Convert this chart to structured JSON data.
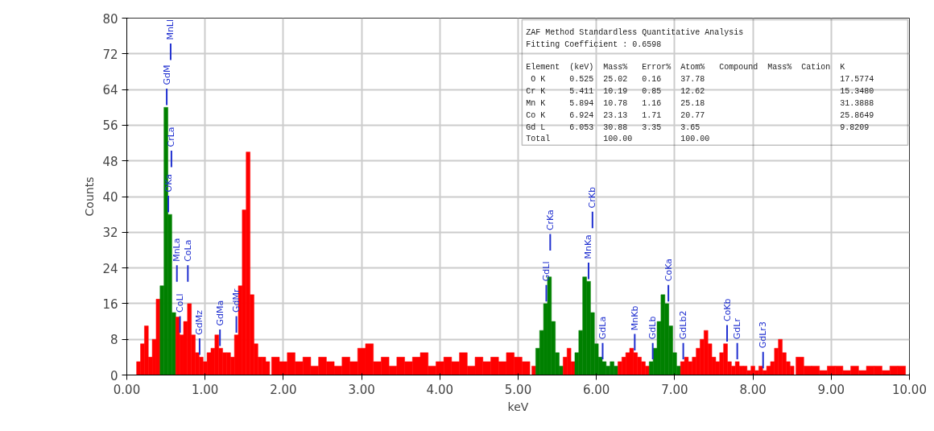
{
  "chart_data": {
    "type": "bar",
    "xlabel": "keV",
    "ylabel": "Counts",
    "xlim": [
      0,
      10
    ],
    "ylim": [
      0,
      80
    ],
    "xticks": [
      {
        "value": 0,
        "label": "0.00"
      },
      {
        "value": 1,
        "label": "1.00"
      },
      {
        "value": 2,
        "label": "2.00"
      },
      {
        "value": 3,
        "label": "3.00"
      },
      {
        "value": 4,
        "label": "4.00"
      },
      {
        "value": 5,
        "label": "5.00"
      },
      {
        "value": 6,
        "label": "6.00"
      },
      {
        "value": 7,
        "label": "7.00"
      },
      {
        "value": 8,
        "label": "8.00"
      },
      {
        "value": 9,
        "label": "9.00"
      },
      {
        "value": 10,
        "label": "10.00"
      }
    ],
    "yticks": [
      0,
      8,
      16,
      24,
      32,
      40,
      48,
      56,
      64,
      72,
      80
    ],
    "grid": true,
    "x": [
      0.15,
      0.2,
      0.25,
      0.3,
      0.35,
      0.4,
      0.45,
      0.5,
      0.55,
      0.6,
      0.65,
      0.7,
      0.75,
      0.8,
      0.85,
      0.9,
      0.95,
      1.0,
      1.05,
      1.1,
      1.15,
      1.2,
      1.25,
      1.3,
      1.35,
      1.4,
      1.45,
      1.5,
      1.55,
      1.6,
      1.65,
      1.7,
      1.75,
      1.8,
      1.9,
      2.0,
      2.1,
      2.2,
      2.3,
      2.4,
      2.5,
      2.6,
      2.7,
      2.8,
      2.9,
      3.0,
      3.1,
      3.2,
      3.3,
      3.4,
      3.5,
      3.6,
      3.7,
      3.8,
      3.9,
      4.0,
      4.1,
      4.2,
      4.3,
      4.4,
      4.5,
      4.6,
      4.7,
      4.8,
      4.9,
      5.0,
      5.1,
      5.2,
      5.25,
      5.3,
      5.35,
      5.4,
      5.45,
      5.5,
      5.55,
      5.6,
      5.65,
      5.7,
      5.75,
      5.8,
      5.85,
      5.9,
      5.95,
      6.0,
      6.05,
      6.1,
      6.15,
      6.2,
      6.25,
      6.3,
      6.35,
      6.4,
      6.45,
      6.5,
      6.55,
      6.6,
      6.65,
      6.7,
      6.75,
      6.8,
      6.85,
      6.9,
      6.95,
      7.0,
      7.05,
      7.1,
      7.15,
      7.2,
      7.25,
      7.3,
      7.35,
      7.4,
      7.45,
      7.5,
      7.55,
      7.6,
      7.65,
      7.7,
      7.75,
      7.8,
      7.85,
      7.9,
      7.95,
      8.0,
      8.05,
      8.1,
      8.15,
      8.2,
      8.25,
      8.3,
      8.35,
      8.4,
      8.45,
      8.5,
      8.6,
      8.7,
      8.8,
      8.9,
      9.0,
      9.1,
      9.2,
      9.3,
      9.4,
      9.5,
      9.6,
      9.7,
      9.8,
      9.9
    ],
    "values": [
      3,
      7,
      11,
      4,
      8,
      17,
      20,
      60,
      36,
      14,
      13,
      9,
      12,
      16,
      9,
      5,
      4,
      3,
      5,
      6,
      9,
      6,
      5,
      5,
      4,
      9,
      20,
      37,
      50,
      18,
      7,
      4,
      4,
      3,
      4,
      3,
      5,
      3,
      4,
      2,
      4,
      3,
      2,
      4,
      3,
      6,
      7,
      3,
      4,
      2,
      4,
      3,
      4,
      5,
      2,
      3,
      4,
      3,
      5,
      2,
      4,
      3,
      4,
      3,
      5,
      4,
      3,
      2,
      6,
      10,
      16,
      22,
      12,
      5,
      2,
      4,
      6,
      3,
      5,
      10,
      22,
      21,
      14,
      7,
      4,
      3,
      2,
      3,
      2,
      3,
      4,
      5,
      6,
      5,
      4,
      3,
      2,
      3,
      6,
      12,
      18,
      16,
      11,
      5,
      2,
      3,
      4,
      3,
      4,
      6,
      8,
      10,
      7,
      4,
      3,
      5,
      7,
      3,
      2,
      3,
      2,
      2,
      1,
      2,
      1,
      2,
      1,
      2,
      3,
      6,
      8,
      5,
      3,
      2,
      4,
      2,
      2,
      1,
      2,
      2,
      1,
      2,
      1,
      2,
      2,
      1,
      2,
      2
    ],
    "colors": [
      "#ff0000",
      "#ff0000",
      "#ff0000",
      "#ff0000",
      "#ff0000",
      "#ff0000",
      "#008000",
      "#008000",
      "#008000",
      "#008000",
      "#ff0000",
      "#ff0000",
      "#ff0000",
      "#ff0000",
      "#ff0000",
      "#ff0000",
      "#ff0000",
      "#ff0000",
      "#ff0000",
      "#ff0000",
      "#ff0000",
      "#ff0000",
      "#ff0000",
      "#ff0000",
      "#ff0000",
      "#ff0000",
      "#ff0000",
      "#ff0000",
      "#ff0000",
      "#ff0000",
      "#ff0000",
      "#ff0000",
      "#ff0000",
      "#ff0000",
      "#ff0000",
      "#ff0000",
      "#ff0000",
      "#ff0000",
      "#ff0000",
      "#ff0000",
      "#ff0000",
      "#ff0000",
      "#ff0000",
      "#ff0000",
      "#ff0000",
      "#ff0000",
      "#ff0000",
      "#ff0000",
      "#ff0000",
      "#ff0000",
      "#ff0000",
      "#ff0000",
      "#ff0000",
      "#ff0000",
      "#ff0000",
      "#ff0000",
      "#ff0000",
      "#ff0000",
      "#ff0000",
      "#ff0000",
      "#ff0000",
      "#ff0000",
      "#ff0000",
      "#ff0000",
      "#ff0000",
      "#ff0000",
      "#ff0000",
      "#ff0000",
      "#008000",
      "#008000",
      "#008000",
      "#008000",
      "#008000",
      "#008000",
      "#008000",
      "#ff0000",
      "#ff0000",
      "#ff0000",
      "#008000",
      "#008000",
      "#008000",
      "#008000",
      "#008000",
      "#008000",
      "#008000",
      "#008000",
      "#008000",
      "#008000",
      "#008000",
      "#ff0000",
      "#ff0000",
      "#ff0000",
      "#ff0000",
      "#ff0000",
      "#ff0000",
      "#ff0000",
      "#ff0000",
      "#008000",
      "#008000",
      "#008000",
      "#008000",
      "#008000",
      "#008000",
      "#008000",
      "#008000",
      "#ff0000",
      "#ff0000",
      "#ff0000",
      "#ff0000",
      "#ff0000",
      "#ff0000",
      "#ff0000",
      "#ff0000",
      "#ff0000",
      "#ff0000",
      "#ff0000",
      "#ff0000",
      "#ff0000",
      "#ff0000",
      "#ff0000",
      "#ff0000",
      "#ff0000",
      "#ff0000",
      "#ff0000",
      "#ff0000",
      "#ff0000",
      "#ff0000",
      "#ff0000",
      "#ff0000",
      "#ff0000",
      "#ff0000",
      "#ff0000",
      "#ff0000",
      "#ff0000",
      "#ff0000",
      "#ff0000",
      "#ff0000",
      "#ff0000",
      "#ff0000",
      "#ff0000",
      "#ff0000",
      "#ff0000",
      "#ff0000",
      "#ff0000",
      "#ff0000",
      "#ff0000",
      "#ff0000",
      "#ff0000"
    ],
    "ref_lines": [
      {
        "axis": "x",
        "value": 0.51,
        "label": "GdM",
        "color": "#2030d0"
      },
      {
        "axis": "x",
        "value": 0.53,
        "label": "OKa",
        "color": "#2030d0"
      },
      {
        "axis": "x",
        "value": 0.57,
        "label": "CrLa",
        "color": "#2030d0"
      },
      {
        "axis": "x",
        "value": 0.56,
        "label": "MnLl",
        "color": "#2030d0"
      },
      {
        "axis": "x",
        "value": 0.68,
        "label": "CoLl",
        "color": "#2030d0"
      },
      {
        "axis": "x",
        "value": 0.64,
        "label": "MnLa",
        "color": "#2030d0"
      },
      {
        "axis": "x",
        "value": 0.78,
        "label": "CoLa",
        "color": "#2030d0"
      },
      {
        "axis": "x",
        "value": 0.93,
        "label": "GdMz",
        "color": "#2030d0"
      },
      {
        "axis": "x",
        "value": 1.19,
        "label": "GdMa",
        "color": "#2030d0"
      },
      {
        "axis": "x",
        "value": 1.4,
        "label": "GdMr",
        "color": "#2030d0"
      },
      {
        "axis": "x",
        "value": 5.36,
        "label": "GdLl",
        "color": "#2030d0"
      },
      {
        "axis": "x",
        "value": 5.41,
        "label": "CrKa",
        "color": "#2030d0"
      },
      {
        "axis": "x",
        "value": 5.9,
        "label": "MnKa",
        "color": "#2030d0"
      },
      {
        "axis": "x",
        "value": 5.95,
        "label": "CrKb",
        "color": "#2030d0"
      },
      {
        "axis": "x",
        "value": 6.08,
        "label": "GdLa",
        "color": "#2030d0"
      },
      {
        "axis": "x",
        "value": 6.49,
        "label": "MnKb",
        "color": "#2030d0"
      },
      {
        "axis": "x",
        "value": 6.72,
        "label": "GdLb",
        "color": "#2030d0"
      },
      {
        "axis": "x",
        "value": 6.92,
        "label": "CoKa",
        "color": "#2030d0"
      },
      {
        "axis": "x",
        "value": 7.11,
        "label": "GdLb2",
        "color": "#2030d0"
      },
      {
        "axis": "x",
        "value": 7.67,
        "label": "CoKb",
        "color": "#2030d0"
      },
      {
        "axis": "x",
        "value": 7.8,
        "label": "GdLr",
        "color": "#2030d0"
      },
      {
        "axis": "x",
        "value": 8.13,
        "label": "GdLr3",
        "color": "#2030d0"
      }
    ],
    "annotations": [
      "ZAF Method Standardless Quantitative Analysis",
      "Fitting Coefficient : 0.6598",
      "Element  (keV)  Mass%   Error%  Atom%   Compound  Mass%  Cation  K",
      " O K     0.525  25.02   0.16    37.78                            17.5774",
      "Cr K     5.411  10.19   0.85    12.62                            15.3480",
      "Mn K     5.894  10.78   1.16    25.18                            31.3888",
      "Co K     6.924  23.13   1.71    20.77                            25.8649",
      "Gd L     6.053  30.88   3.35    3.65                             9.8209",
      "Total           100.00          100.00"
    ]
  }
}
